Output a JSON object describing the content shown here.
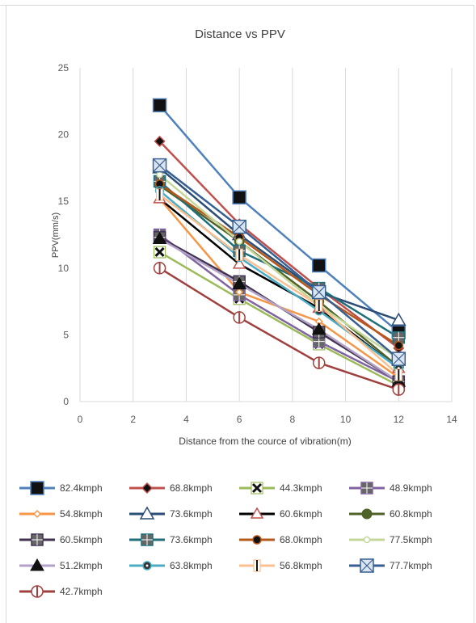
{
  "chart_data": {
    "type": "line",
    "title": "Distance vs PPV",
    "xlabel": "Distance from the cource of vibration(m)",
    "ylabel": "PPV(mm/s)",
    "xlim": [
      0,
      14
    ],
    "ylim": [
      0,
      25
    ],
    "xticks": [
      "0",
      "2",
      "4",
      "6",
      "8",
      "10",
      "12",
      "14"
    ],
    "yticks": [
      "0",
      "5",
      "10",
      "15",
      "20",
      "25"
    ],
    "grid": "vertical",
    "legend_position": "bottom",
    "x": [
      3,
      6,
      9,
      12
    ],
    "series": [
      {
        "name": "82.4kmph",
        "color": "#4f81bd",
        "marker": "square-solid",
        "values": [
          22.2,
          15.3,
          10.2,
          5.2
        ]
      },
      {
        "name": "68.8kmph",
        "color": "#c0504d",
        "marker": "diamond",
        "values": [
          19.5,
          13.3,
          8.5,
          4.0
        ]
      },
      {
        "name": "44.3kmph",
        "color": "#9bbb59",
        "marker": "x-box",
        "values": [
          11.2,
          7.7,
          4.3,
          1.2
        ]
      },
      {
        "name": "48.9kmph",
        "color": "#8064a2",
        "marker": "checker-square",
        "values": [
          12.5,
          8.0,
          4.5,
          1.5
        ]
      },
      {
        "name": "54.8kmph",
        "color": "#f79646",
        "marker": "diamond-small",
        "values": [
          15.2,
          8.2,
          6.0,
          1.8
        ]
      },
      {
        "name": "73.6kmph",
        "color": "#2c4d75",
        "marker": "triangle",
        "values": [
          17.5,
          12.5,
          8.2,
          6.1
        ]
      },
      {
        "name": "60.6kmph",
        "color": "#000000",
        "marker": "triangle-red",
        "values": [
          15.2,
          10.3,
          7.0,
          2.5
        ]
      },
      {
        "name": "60.8kmph",
        "color": "#4f6228",
        "marker": "circle",
        "values": [
          16.2,
          12.0,
          7.5,
          2.6
        ]
      },
      {
        "name": "60.5kmph",
        "color": "#403151",
        "marker": "square-grid",
        "values": [
          12.3,
          9.0,
          5.2,
          1.5
        ]
      },
      {
        "name": "73.6kmph",
        "color": "#1f6f7a",
        "marker": "square-dots",
        "values": [
          16.5,
          11.3,
          8.5,
          4.8
        ]
      },
      {
        "name": "68.0kmph",
        "color": "#b7581b",
        "marker": "circle-dot",
        "values": [
          16.3,
          12.3,
          8.0,
          4.2
        ]
      },
      {
        "name": "77.5kmph",
        "color": "#c4d79b",
        "marker": "circle-small",
        "values": [
          17.0,
          12.0,
          7.2,
          3.2
        ]
      },
      {
        "name": "51.2kmph",
        "color": "#b3a2c7",
        "marker": "triangle-black",
        "values": [
          12.2,
          8.8,
          5.4,
          1.5
        ]
      },
      {
        "name": "63.8kmph",
        "color": "#4bacc6",
        "marker": "circle-teal",
        "values": [
          15.8,
          10.8,
          6.8,
          2.5
        ]
      },
      {
        "name": "56.8kmph",
        "color": "#fac090",
        "marker": "plus-square",
        "values": [
          15.5,
          11.0,
          7.2,
          2.0
        ]
      },
      {
        "name": "77.7kmph",
        "color": "#376092",
        "marker": "square-x",
        "values": [
          17.7,
          13.1,
          8.2,
          3.2
        ]
      },
      {
        "name": "42.7kmph",
        "color": "#a0403d",
        "marker": "circle-bar",
        "values": [
          10.0,
          6.3,
          2.9,
          0.9
        ]
      }
    ]
  }
}
